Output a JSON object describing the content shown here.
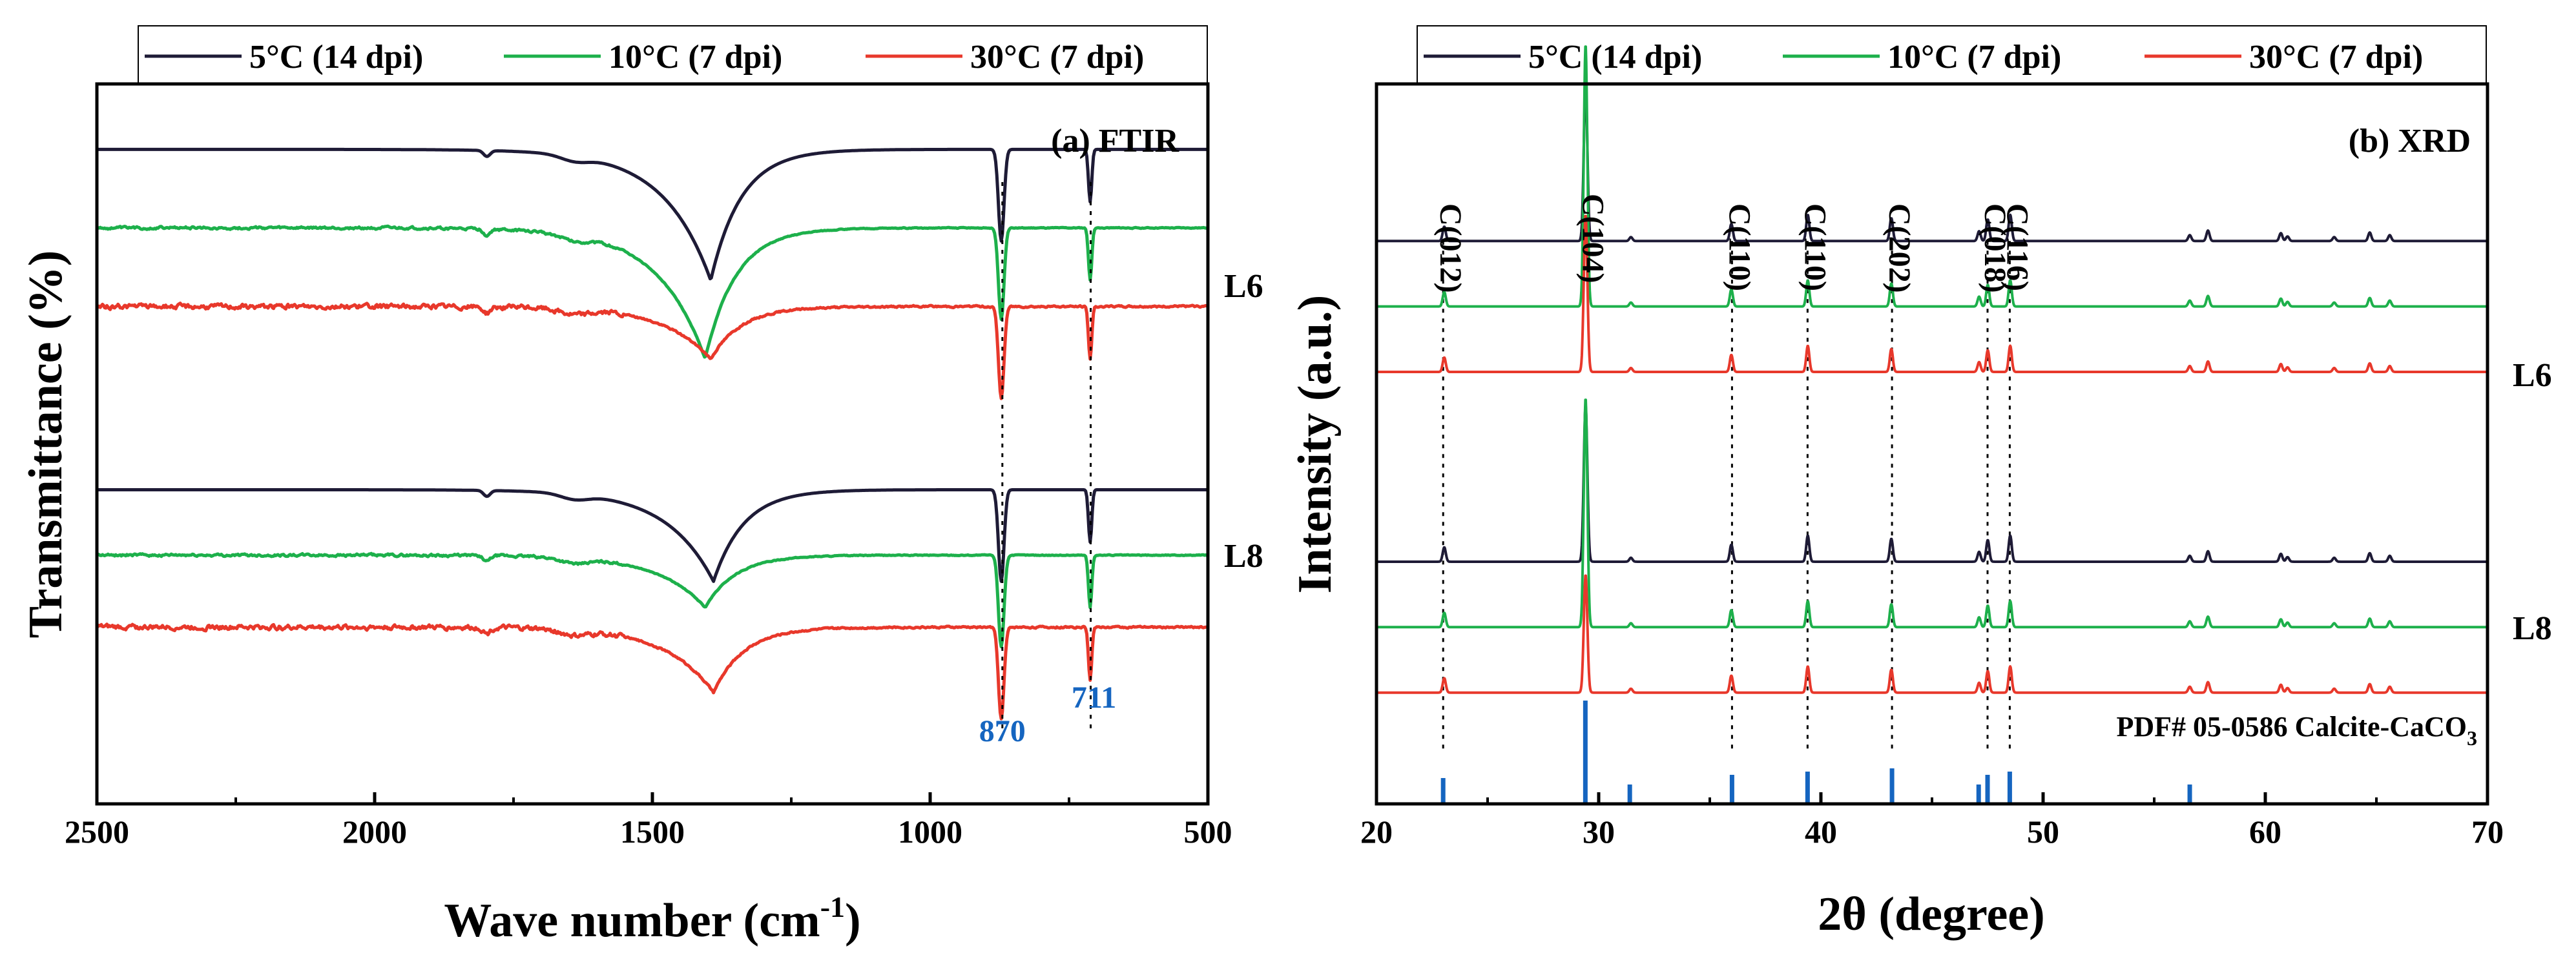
{
  "colors": {
    "c5": "#1E1B36",
    "c10": "#1DB04B",
    "c30": "#E8382B",
    "peak": "#1565C0"
  },
  "chart_data": [
    {
      "type": "line",
      "title": "(a) FTIR",
      "xlabel": "Wave number (cm",
      "xlabel_sup": "-1",
      "xlabel_end": ")",
      "ylabel": "Transmittance (%)",
      "xlim": [
        2500,
        500
      ],
      "xticks": [
        "2500",
        "2000",
        "1500",
        "1000",
        "500"
      ],
      "legend": [
        "5°C (14 dpi)",
        "10°C (7 dpi)",
        "30°C (7 dpi)"
      ],
      "groups": [
        "L6",
        "L8"
      ],
      "peaks": [
        {
          "x": 870,
          "label": "870"
        },
        {
          "x": 711,
          "label": "711"
        }
      ],
      "series": [
        {
          "name": "5°C (14 dpi)",
          "group": "L6",
          "color": "c5",
          "baseline": 100,
          "broad": {
            "center": 1395,
            "depth": 20
          },
          "noise": 0
        },
        {
          "name": "10°C (7 dpi)",
          "group": "L6",
          "color": "c10",
          "baseline": 88,
          "broad": {
            "center": 1405,
            "depth": 20
          },
          "noise": 0.3
        },
        {
          "name": "30°C (7 dpi)",
          "group": "L6",
          "color": "c30",
          "baseline": 76,
          "broad": {
            "center": 1395,
            "depth": 8
          },
          "noise": 0.6
        },
        {
          "name": "5°C (14 dpi)",
          "group": "L8",
          "color": "c5",
          "baseline": 48,
          "broad": {
            "center": 1390,
            "depth": 14
          },
          "noise": 0
        },
        {
          "name": "10°C (7 dpi)",
          "group": "L8",
          "color": "c10",
          "baseline": 38,
          "broad": {
            "center": 1405,
            "depth": 8
          },
          "noise": 0.3
        },
        {
          "name": "30°C (7 dpi)",
          "group": "L8",
          "color": "c30",
          "baseline": 27,
          "broad": {
            "center": 1390,
            "depth": 10
          },
          "noise": 0.6
        }
      ]
    },
    {
      "type": "line",
      "title": "(b) XRD",
      "xlabel": "2θ (degree)",
      "ylabel": "Intensity (a.u.)",
      "xlim": [
        20,
        70
      ],
      "xticks": [
        "20",
        "30",
        "40",
        "50",
        "60",
        "70"
      ],
      "legend": [
        "5°C (14 dpi)",
        "10°C (7 dpi)",
        "30°C (7 dpi)"
      ],
      "groups": [
        "L6",
        "L8"
      ],
      "hkl": [
        {
          "x": 23.0,
          "label": "C(012)"
        },
        {
          "x": 29.4,
          "label": "C(104)"
        },
        {
          "x": 36.0,
          "label": "C(110)"
        },
        {
          "x": 39.4,
          "label": "C(110)"
        },
        {
          "x": 43.2,
          "label": "C(202)"
        },
        {
          "x": 47.5,
          "label": "C(018)"
        },
        {
          "x": 48.5,
          "label": "C(116)"
        }
      ],
      "reference": {
        "label": "PDF# 05-0586 Calcite-CaCO",
        "label_sub": "3",
        "lines": [
          23.0,
          29.4,
          31.4,
          36.0,
          39.4,
          43.2,
          47.1,
          47.5,
          48.5,
          56.6
        ]
      },
      "series": [
        {
          "name": "5°C (14 dpi)",
          "group": "L6",
          "color": "c5",
          "baseline": 86
        },
        {
          "name": "10°C (7 dpi)",
          "group": "L6",
          "color": "c10",
          "baseline": 76
        },
        {
          "name": "30°C (7 dpi)",
          "group": "L6",
          "color": "c30",
          "baseline": 66
        },
        {
          "name": "5°C (14 dpi)",
          "group": "L8",
          "color": "c5",
          "baseline": 37
        },
        {
          "name": "10°C (7 dpi)",
          "group": "L8",
          "color": "c10",
          "baseline": 27
        },
        {
          "name": "30°C (7 dpi)",
          "group": "L8",
          "color": "c30",
          "baseline": 17
        }
      ]
    }
  ]
}
